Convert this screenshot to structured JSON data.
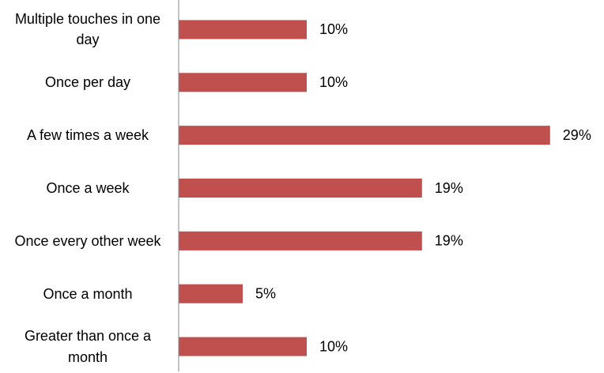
{
  "chart_data": {
    "type": "bar",
    "orientation": "horizontal",
    "categories": [
      "Multiple touches in one day",
      "Once per day",
      "A few times a week",
      "Once a week",
      "Once every other week",
      "Once a month",
      "Greater than once a month"
    ],
    "values": [
      10,
      10,
      29,
      19,
      19,
      5,
      10
    ],
    "value_labels": [
      "10%",
      "10%",
      "29%",
      "19%",
      "19%",
      "5%",
      "10%"
    ],
    "color": "#c0504d",
    "xlim": [
      0,
      30
    ]
  }
}
